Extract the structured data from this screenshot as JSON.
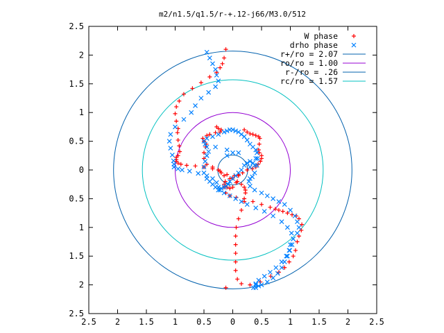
{
  "chart_data": {
    "type": "scatter",
    "title": "m2/n1.5/q1.5/r-+.12-j66/M3.0/512",
    "xlabel": "",
    "ylabel": "",
    "xlim": [
      -2.5,
      2.5
    ],
    "ylim": [
      -2.5,
      2.5
    ],
    "x_ticks": [
      -2.5,
      -2,
      -1.5,
      -1,
      -0.5,
      0,
      0.5,
      1,
      1.5,
      2,
      2.5
    ],
    "y_ticks": [
      -2.5,
      -2,
      -1.5,
      -1,
      -0.5,
      0,
      0.5,
      1,
      1.5,
      2,
      2.5
    ],
    "x_tick_labels": [
      "2.5",
      "2",
      "1.5",
      "1",
      "0.5",
      "0",
      "0.5",
      "1",
      "1.5",
      "2",
      "2.5"
    ],
    "y_tick_labels": [
      "2.5",
      "2",
      "1.5",
      "1",
      "0.5",
      "0",
      "0.5",
      "1",
      "1.5",
      "2",
      "2.5"
    ],
    "grid": false,
    "legend_position": "top-right",
    "scatter_series": [
      {
        "name": "W phase",
        "marker": "+",
        "color": "#ff0000",
        "x": [
          -0.12,
          -0.15,
          -0.18,
          -0.22,
          -0.28,
          -0.4,
          -0.55,
          -0.7,
          -0.85,
          -0.93,
          -0.98,
          -1.0,
          -0.98,
          -0.95,
          -0.96,
          -0.95,
          -0.93,
          -0.92,
          -0.95,
          -0.98,
          -0.98,
          -0.98,
          -0.95,
          -0.9,
          -0.8,
          -0.65,
          -0.5,
          -0.35,
          -0.22,
          -0.1,
          0.0,
          0.08,
          0.15,
          0.2,
          0.22,
          0.22,
          0.2,
          0.15,
          0.1,
          0.06,
          0.05,
          0.05,
          0.05,
          0.05,
          0.05,
          0.08,
          0.15,
          0.3,
          0.48,
          0.66,
          0.8,
          0.9,
          0.98,
          1.05,
          1.09,
          1.12,
          1.15,
          1.19,
          1.2,
          1.15,
          1.1,
          1.03,
          0.95,
          0.87,
          0.8,
          0.74,
          0.65,
          0.5,
          0.35,
          0.2,
          0.06,
          -0.05,
          -0.12,
          -0.15,
          -0.13,
          -0.15,
          -0.2,
          -0.25,
          -0.35,
          -0.45,
          -0.5,
          -0.5,
          -0.47,
          -0.46,
          -0.5,
          -0.52,
          -0.45,
          -0.4,
          -0.3,
          -0.22,
          -0.2,
          -0.25,
          -0.28,
          0.1,
          0.06,
          0.0,
          -0.05,
          -0.1,
          -0.15,
          -0.05,
          0.03,
          0.1,
          0.17,
          0.25,
          0.34,
          0.4,
          0.44,
          0.48,
          0.5,
          0.5,
          0.46,
          0.45,
          0.46,
          0.47,
          0.45,
          0.4,
          0.35,
          0.3,
          0.25,
          0.2,
          -0.12
        ],
        "y": [
          2.1,
          1.95,
          1.85,
          1.78,
          1.7,
          1.62,
          1.52,
          1.42,
          1.32,
          1.2,
          1.1,
          0.98,
          0.85,
          0.72,
          0.65,
          0.52,
          0.42,
          0.32,
          0.25,
          0.22,
          0.18,
          0.15,
          0.12,
          0.1,
          0.08,
          0.07,
          0.05,
          0.02,
          -0.02,
          -0.08,
          -0.14,
          -0.2,
          -0.25,
          -0.3,
          -0.35,
          -0.4,
          -0.55,
          -0.7,
          -0.85,
          -1.0,
          -1.15,
          -1.3,
          -1.45,
          -1.6,
          -1.75,
          -1.9,
          -1.98,
          -2.0,
          -1.95,
          -1.85,
          -1.78,
          -1.7,
          -1.6,
          -1.5,
          -1.4,
          -1.25,
          -1.15,
          -1.05,
          -0.95,
          -0.85,
          -0.8,
          -0.78,
          -0.75,
          -0.72,
          -0.7,
          -0.68,
          -0.65,
          -0.6,
          -0.55,
          -0.5,
          -0.48,
          -0.45,
          -0.4,
          -0.3,
          -0.2,
          -0.1,
          -0.05,
          0.0,
          0.05,
          0.1,
          0.2,
          0.3,
          0.4,
          0.45,
          0.5,
          0.55,
          0.6,
          0.62,
          0.65,
          0.66,
          0.7,
          0.72,
          0.75,
          -0.1,
          -0.22,
          -0.3,
          -0.32,
          -0.3,
          -0.25,
          -0.15,
          -0.1,
          -0.08,
          -0.05,
          0.0,
          0.02,
          0.05,
          0.1,
          0.15,
          0.2,
          0.25,
          0.3,
          0.35,
          0.45,
          0.55,
          0.58,
          0.6,
          0.62,
          0.63,
          0.66,
          0.7,
          -2.05
        ]
      },
      {
        "name": "drho phase",
        "marker": "x",
        "color": "#0080ff",
        "x": [
          -0.45,
          -0.4,
          -0.35,
          -0.3,
          -0.28,
          -0.25,
          -0.3,
          -0.42,
          -0.55,
          -0.65,
          -0.72,
          -0.85,
          -1.0,
          -1.08,
          -1.1,
          -1.08,
          -1.05,
          -1.03,
          -1.02,
          -1.02,
          -0.95,
          -0.88,
          -0.75,
          -0.6,
          -0.45,
          -0.35,
          -0.28,
          -0.25,
          -0.22,
          -0.15,
          -0.05,
          0.05,
          0.15,
          0.25,
          0.4,
          0.55,
          0.7,
          0.85,
          0.95,
          1.02,
          1.05,
          1.03,
          0.99,
          0.93,
          0.85,
          0.75,
          0.65,
          0.55,
          0.45,
          0.4,
          0.4,
          0.38,
          0.35,
          0.3,
          0.25,
          0.2,
          0.15,
          0.1,
          0.05,
          0.0,
          -0.05,
          -0.08,
          -0.12,
          -0.15,
          -0.2,
          -0.25,
          -0.3,
          -0.35,
          -0.4,
          -0.45,
          -0.5,
          -0.5,
          -0.48,
          -0.45,
          -0.42,
          -0.45,
          -0.48,
          -0.5,
          -0.45,
          -0.35,
          -0.25,
          -0.15,
          -0.1,
          -0.05,
          0.0,
          0.05,
          0.1,
          0.15,
          0.2,
          0.25,
          0.3,
          0.35,
          0.4,
          0.42,
          0.43,
          0.42,
          0.38,
          0.34,
          0.3,
          0.28,
          0.3,
          0.38,
          0.5,
          0.6,
          0.7,
          0.8,
          0.9,
          1.0,
          1.08,
          1.12,
          1.15,
          1.12,
          1.05,
          1.0,
          0.98,
          0.95,
          0.9,
          0.85,
          0.78,
          0.7,
          0.6,
          0.5,
          0.45,
          0.4,
          0.36,
          0.0,
          -0.1,
          0.1,
          0.4,
          0.3,
          -0.45,
          -0.3,
          -0.1
        ],
        "y": [
          2.05,
          1.95,
          1.85,
          1.75,
          1.65,
          1.55,
          1.45,
          1.35,
          1.25,
          1.12,
          1.0,
          0.88,
          0.75,
          0.62,
          0.5,
          0.38,
          0.26,
          0.16,
          0.1,
          0.05,
          0.02,
          0.0,
          -0.02,
          -0.06,
          -0.1,
          -0.15,
          -0.22,
          -0.3,
          -0.35,
          -0.4,
          -0.45,
          -0.5,
          -0.55,
          -0.6,
          -0.66,
          -0.72,
          -0.8,
          -0.9,
          -1.0,
          -1.1,
          -1.2,
          -1.3,
          -1.4,
          -1.5,
          -1.6,
          -1.7,
          -1.78,
          -1.85,
          -1.92,
          -1.98,
          -2.0,
          0.08,
          0.12,
          0.15,
          0.12,
          0.08,
          0.0,
          -0.05,
          -0.1,
          -0.15,
          -0.2,
          -0.25,
          -0.28,
          -0.3,
          -0.32,
          -0.35,
          -0.3,
          -0.25,
          -0.2,
          -0.15,
          -0.05,
          0.05,
          0.15,
          0.25,
          0.32,
          0.4,
          0.45,
          0.5,
          0.55,
          0.58,
          0.62,
          0.66,
          0.68,
          0.7,
          0.7,
          0.68,
          0.66,
          0.62,
          0.58,
          0.52,
          0.45,
          0.4,
          0.35,
          0.3,
          0.2,
          0.08,
          -0.05,
          -0.12,
          -0.15,
          -0.2,
          -0.28,
          -0.35,
          -0.4,
          -0.45,
          -0.5,
          -0.55,
          -0.6,
          -0.7,
          -0.8,
          -0.9,
          -1.0,
          -1.1,
          -1.2,
          -1.3,
          -1.4,
          -1.5,
          -1.6,
          -1.7,
          -1.8,
          -1.88,
          -1.95,
          -2.0,
          -2.02,
          -2.05,
          -2.05,
          0.3,
          0.25,
          0.3,
          0.2,
          0.05,
          0.25,
          0.4,
          0.35
        ]
      }
    ],
    "line_series": [
      {
        "name": "r+/ro = 2.07",
        "color": "#0060ad",
        "radius": 2.07
      },
      {
        "name": "ro/ro = 1.00",
        "color": "#9400d3",
        "radius": 1.0
      },
      {
        "name": "r-/ro = .26",
        "color": "#0060ad",
        "radius": 0.26
      },
      {
        "name": "rc/ro = 1.57",
        "color": "#00c0c0",
        "radius": 1.57
      }
    ]
  }
}
